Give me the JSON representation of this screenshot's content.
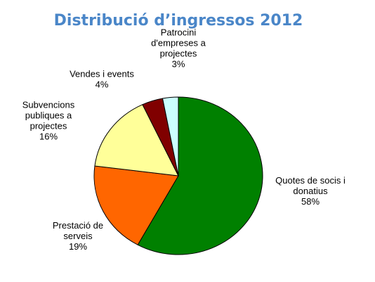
{
  "chart_data": {
    "type": "pie",
    "title": "Distribució d’ingressos 2012",
    "title_color": "#4a86c8",
    "start_angle_deg": 0,
    "direction": "clockwise",
    "slices": [
      {
        "label_lines": [
          "Quotes de socis i",
          "donatius"
        ],
        "value": 58,
        "value_label": "58%",
        "color": "#008000"
      },
      {
        "label_lines": [
          "Prestació de",
          "serveis"
        ],
        "value": 19,
        "value_label": "19%",
        "color": "#ff6600"
      },
      {
        "label_lines": [
          "Subvencions",
          "publiques a",
          "projectes"
        ],
        "value": 16,
        "value_label": "16%",
        "color": "#ffff99"
      },
      {
        "label_lines": [
          "Vendes i events"
        ],
        "value": 4,
        "value_label": "4%",
        "color": "#800000"
      },
      {
        "label_lines": [
          "Patrocini",
          "d'empreses a",
          "projectes"
        ],
        "value": 3,
        "value_label": "3%",
        "color": "#ccffff"
      }
    ]
  }
}
